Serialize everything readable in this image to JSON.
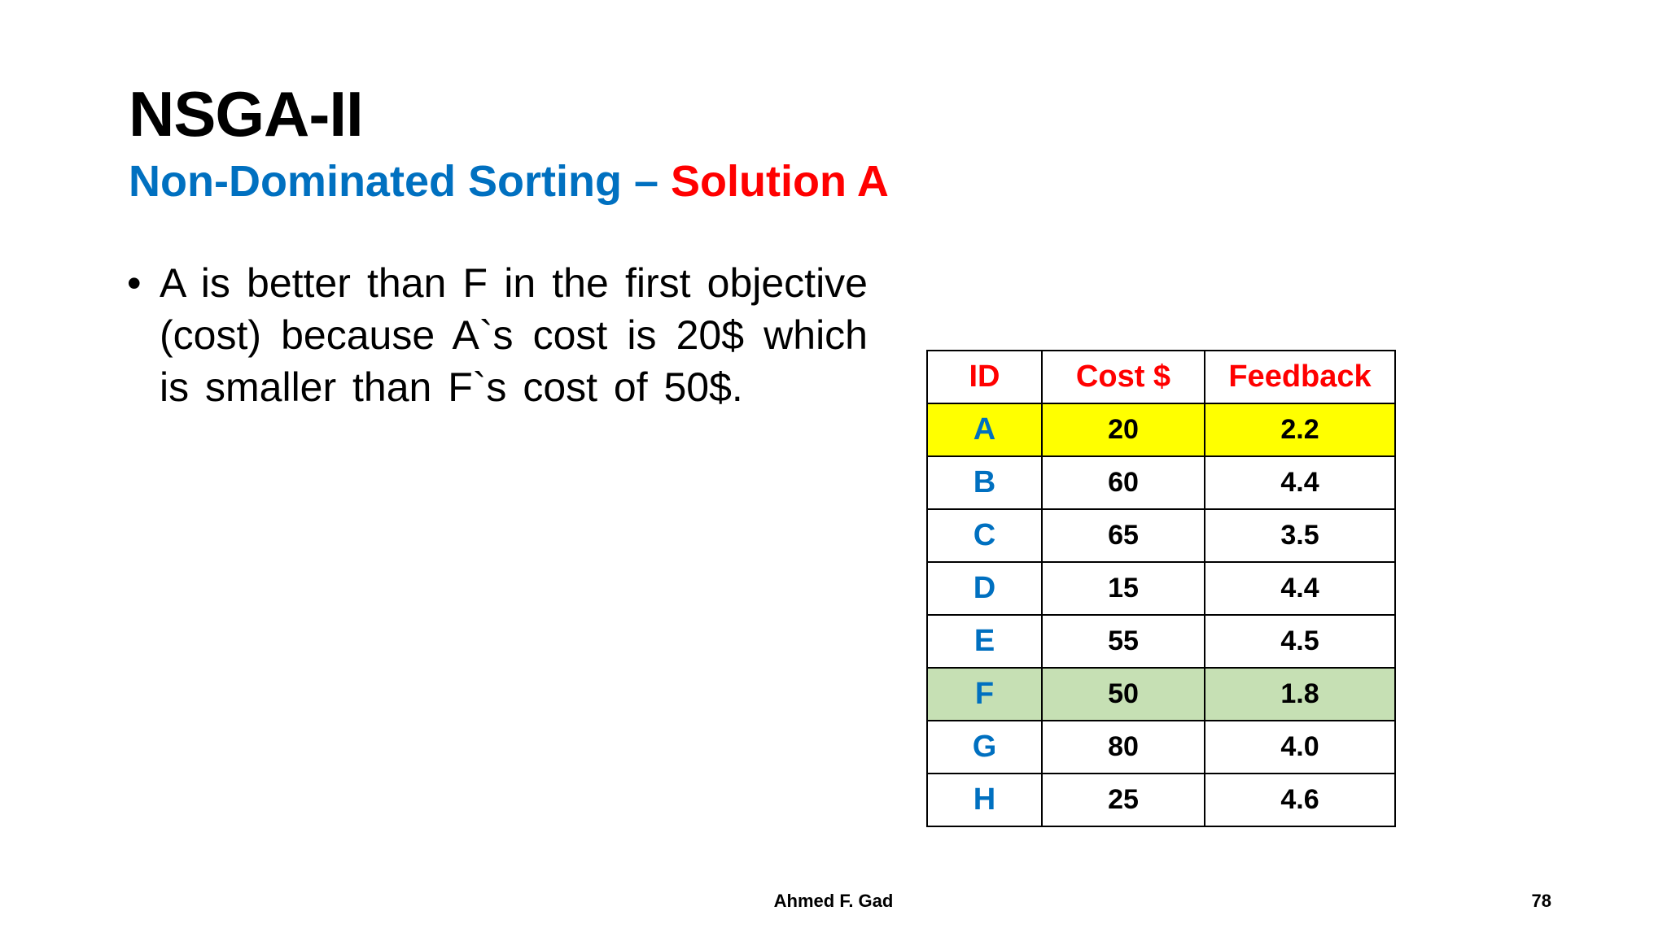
{
  "slide": {
    "title": "NSGA-II",
    "subtitle_part1": "Non-Dominated Sorting – ",
    "subtitle_part2": "Solution A",
    "bullet_text": "A is better than F in the first objective (cost) because A`s cost is 20$ which is smaller than F`s cost of 50$."
  },
  "table": {
    "headers": [
      "ID",
      "Cost $",
      "Feedback"
    ],
    "rows": [
      {
        "id": "A",
        "cost": "20",
        "feedback": "2.2",
        "highlight": "yellow"
      },
      {
        "id": "B",
        "cost": "60",
        "feedback": "4.4",
        "highlight": ""
      },
      {
        "id": "C",
        "cost": "65",
        "feedback": "3.5",
        "highlight": ""
      },
      {
        "id": "D",
        "cost": "15",
        "feedback": "4.4",
        "highlight": ""
      },
      {
        "id": "E",
        "cost": "55",
        "feedback": "4.5",
        "highlight": ""
      },
      {
        "id": "F",
        "cost": "50",
        "feedback": "1.8",
        "highlight": "green"
      },
      {
        "id": "G",
        "cost": "80",
        "feedback": "4.0",
        "highlight": ""
      },
      {
        "id": "H",
        "cost": "25",
        "feedback": "4.6",
        "highlight": ""
      }
    ]
  },
  "colors": {
    "subtitle_blue": "#0070C0",
    "subtitle_red": "#FF0000",
    "header_red": "#FF0000",
    "id_blue": "#0070C0",
    "highlight_yellow": "#FFFF00",
    "highlight_green": "#C6E0B4"
  },
  "footer": {
    "author": "Ahmed F. Gad",
    "page_number": "78"
  }
}
